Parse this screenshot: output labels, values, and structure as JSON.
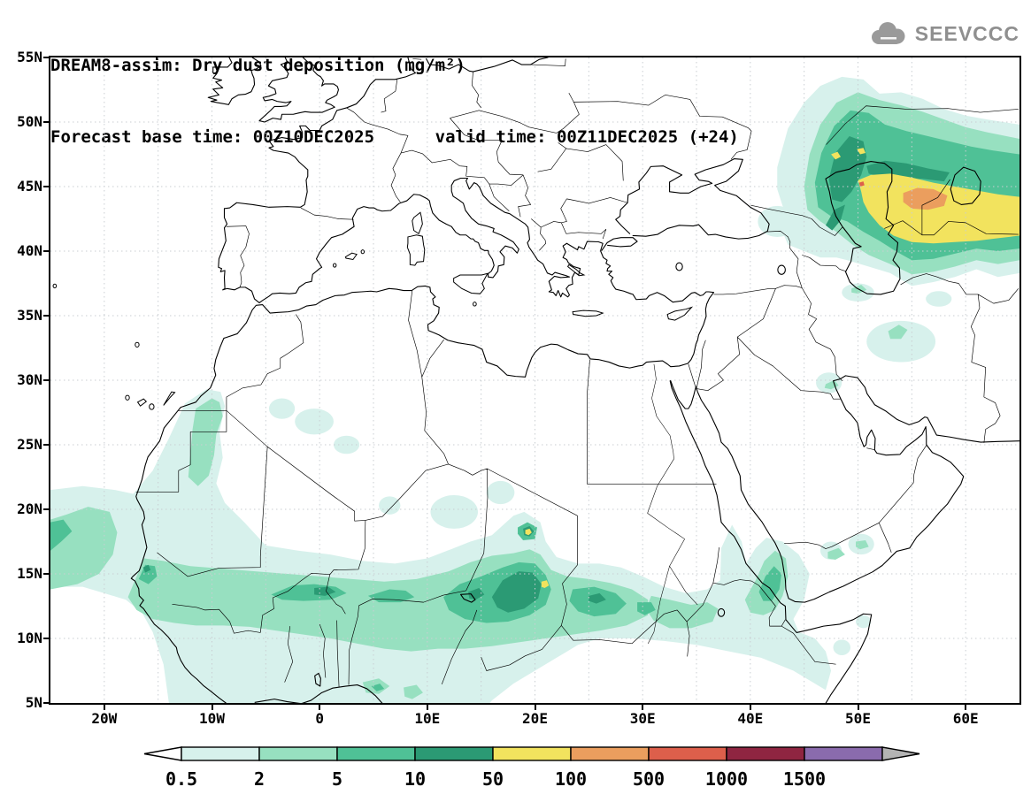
{
  "header": {
    "title_line1": "DREAM8-assim: Dry dust deposition (mg/m²)",
    "title_line2": "Forecast base time: 00Z10DEC2025      valid time: 00Z11DEC2025 (+24)",
    "logo_text": "SEEVCCC"
  },
  "axes": {
    "lat_labels": [
      "55N",
      "50N",
      "45N",
      "40N",
      "35N",
      "30N",
      "25N",
      "20N",
      "15N",
      "10N",
      "5N"
    ],
    "lat_values": [
      55,
      50,
      45,
      40,
      35,
      30,
      25,
      20,
      15,
      10,
      5
    ],
    "lon_labels": [
      "20W",
      "10W",
      "0",
      "10E",
      "20E",
      "30E",
      "40E",
      "50E",
      "60E"
    ],
    "lon_values": [
      -20,
      -10,
      0,
      10,
      20,
      30,
      40,
      50,
      60
    ]
  },
  "legend": {
    "tick_labels": [
      "0.5",
      "2",
      "5",
      "10",
      "50",
      "100",
      "500",
      "1000",
      "1500"
    ],
    "colors": {
      "below_min": "#ffffff",
      "levels": [
        "#d7f1ec",
        "#97e0c0",
        "#4fc196",
        "#2b9a74",
        "#f2e35e",
        "#eb9e5e",
        "#dd5f4b",
        "#8f2541",
        "#8a6bad"
      ],
      "above_max": "#b4b4b4",
      "outline": "#000000",
      "map_background": "#ffffff",
      "coastline": "#000000",
      "logo_gray": "#8f8f8f"
    }
  },
  "chart_data": {
    "type": "heatmap",
    "title": "DREAM8-assim: Dry dust deposition (mg/m²)",
    "variable": "Dry dust deposition",
    "units": "mg/m²",
    "model": "DREAM8-assim",
    "forecast_base_time": "00Z10DEC2025",
    "valid_time": "00Z11DEC2025",
    "forecast_offset_hours": 24,
    "lon_range": [
      -25,
      65
    ],
    "lat_range": [
      5,
      55
    ],
    "grid_spacing_deg": 5,
    "contour_levels_mg_m2": [
      0.5,
      2,
      5,
      10,
      50,
      100,
      500,
      1000,
      1500
    ],
    "regions": [
      {
        "area": "Sahel / southern Sahara band",
        "extent": "8N-17N, 18W-40E",
        "max_level": "50-100 local spots near 19E-21E, mostly 2-50"
      },
      {
        "area": "Atlantic off West Africa",
        "extent": "12N-20N, west of 16W to map edge",
        "max_level": "5-10"
      },
      {
        "area": "NW African coast (W Sahara / S Morocco)",
        "extent": "21N-29N, 13W-8W",
        "max_level": "2-5"
      },
      {
        "area": "southern Red Sea / Gulf of Aden",
        "extent": "11N-17N, 39E-45E",
        "max_level": "5-10"
      },
      {
        "area": "interior Iran",
        "extent": "31N-38N, 48E-59E",
        "max_level": "2-5"
      },
      {
        "area": "Caspian / Central Asia",
        "extent": "37N-53N, 42E-65E",
        "max_level": "100-500 core near 43N-45N 54E-58E, wide 50-100 area"
      }
    ]
  }
}
